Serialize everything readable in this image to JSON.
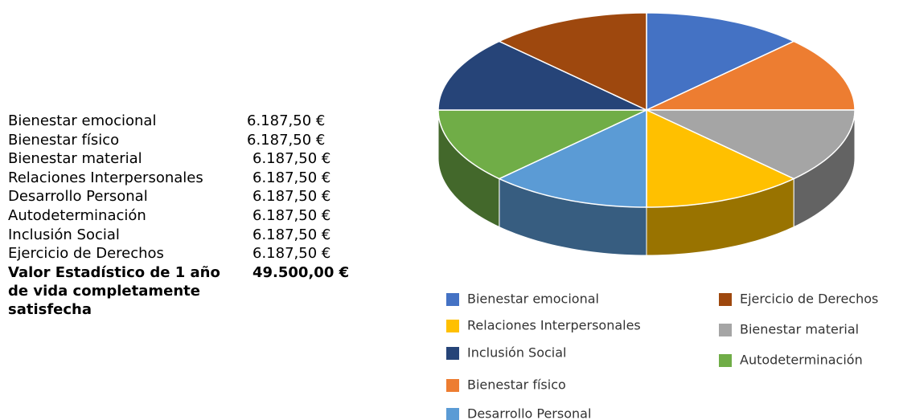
{
  "table": {
    "rows": [
      [
        "Bienestar emocional",
        "6.187,50 €"
      ],
      [
        "Bienestar físico",
        "6.187,50 €"
      ],
      [
        "Bienestar material",
        "6.187,50 €"
      ],
      [
        "Relaciones Interpersonales",
        "6.187,50 €"
      ],
      [
        "Desarrollo Personal",
        "6.187,50 €"
      ],
      [
        "Autodeterminación",
        "6.187,50 €"
      ],
      [
        "Inclusión Social",
        "6.187,50 €"
      ],
      [
        "Ejercicio de Derechos",
        "6.187,50 €"
      ]
    ],
    "total": {
      "label": "Valor Estadístico de 1 año de vida completamente satisfecha",
      "value": "49.500,00 €"
    }
  },
  "chart_data": {
    "type": "pie",
    "categories": [
      "Bienestar emocional",
      "Bienestar físico",
      "Bienestar material",
      "Relaciones Interpersonales",
      "Desarrollo Personal",
      "Autodeterminación",
      "Inclusión Social",
      "Ejercicio de Derechos"
    ],
    "values": [
      6187.5,
      6187.5,
      6187.5,
      6187.5,
      6187.5,
      6187.5,
      6187.5,
      6187.5
    ],
    "colors": [
      "#4472c4",
      "#ed7d31",
      "#a5a5a5",
      "#ffc000",
      "#5b9bd5",
      "#70ad47",
      "#264478",
      "#9e480e"
    ]
  }
}
